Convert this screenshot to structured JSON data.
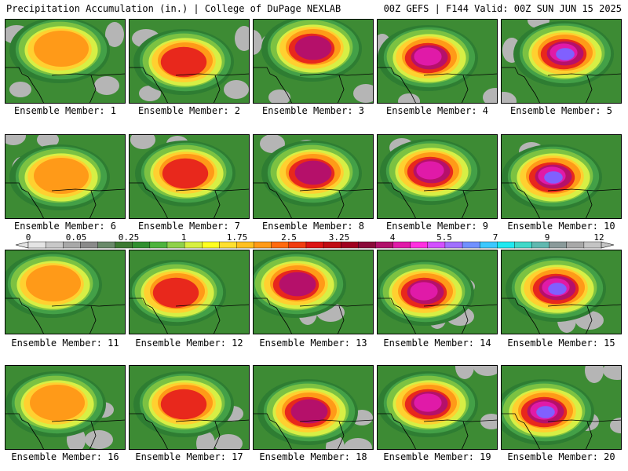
{
  "header": {
    "left_title": "Precipitation Accumulation (in.) | College of DuPage NEXLAB",
    "right_title": "00Z GEFS | F144 Valid: 00Z SUN JUN 15 2025"
  },
  "panels": [
    {
      "label": "Ensemble Member: 1"
    },
    {
      "label": "Ensemble Member: 2"
    },
    {
      "label": "Ensemble Member: 3"
    },
    {
      "label": "Ensemble Member: 4"
    },
    {
      "label": "Ensemble Member: 5"
    },
    {
      "label": "Ensemble Member: 6"
    },
    {
      "label": "Ensemble Member: 7"
    },
    {
      "label": "Ensemble Member: 8"
    },
    {
      "label": "Ensemble Member: 9"
    },
    {
      "label": "Ensemble Member: 10"
    },
    {
      "label": "Ensemble Member: 11"
    },
    {
      "label": "Ensemble Member: 12"
    },
    {
      "label": "Ensemble Member: 13"
    },
    {
      "label": "Ensemble Member: 14"
    },
    {
      "label": "Ensemble Member: 15"
    },
    {
      "label": "Ensemble Member: 16"
    },
    {
      "label": "Ensemble Member: 17"
    },
    {
      "label": "Ensemble Member: 18"
    },
    {
      "label": "Ensemble Member: 19"
    },
    {
      "label": "Ensemble Member: 20"
    }
  ],
  "legend": {
    "tick_labels": [
      "0",
      "0.05",
      "0.25",
      "1",
      "1.75",
      "2.5",
      "3.25",
      "4",
      "5.5",
      "7",
      "9",
      "12"
    ],
    "colors": [
      "#e4e4e4",
      "#c8c8c8",
      "#a8a8a8",
      "#8a8a8a",
      "#6a8a6a",
      "#3c7a32",
      "#2f8f2f",
      "#4db33d",
      "#8fd14a",
      "#d8f040",
      "#ffff20",
      "#ffe030",
      "#ffc020",
      "#ff9a18",
      "#ff6a10",
      "#f03c10",
      "#dc1414",
      "#c00c14",
      "#a00020",
      "#8a0a3a",
      "#b0106a",
      "#e01aa8",
      "#ff30e0",
      "#d250ff",
      "#a070ff",
      "#7090ff",
      "#3cc8ff",
      "#20e8f0",
      "#40d8c8",
      "#60b8b0",
      "#8a9a9a",
      "#a8a8a8",
      "#c4c4c4"
    ]
  }
}
